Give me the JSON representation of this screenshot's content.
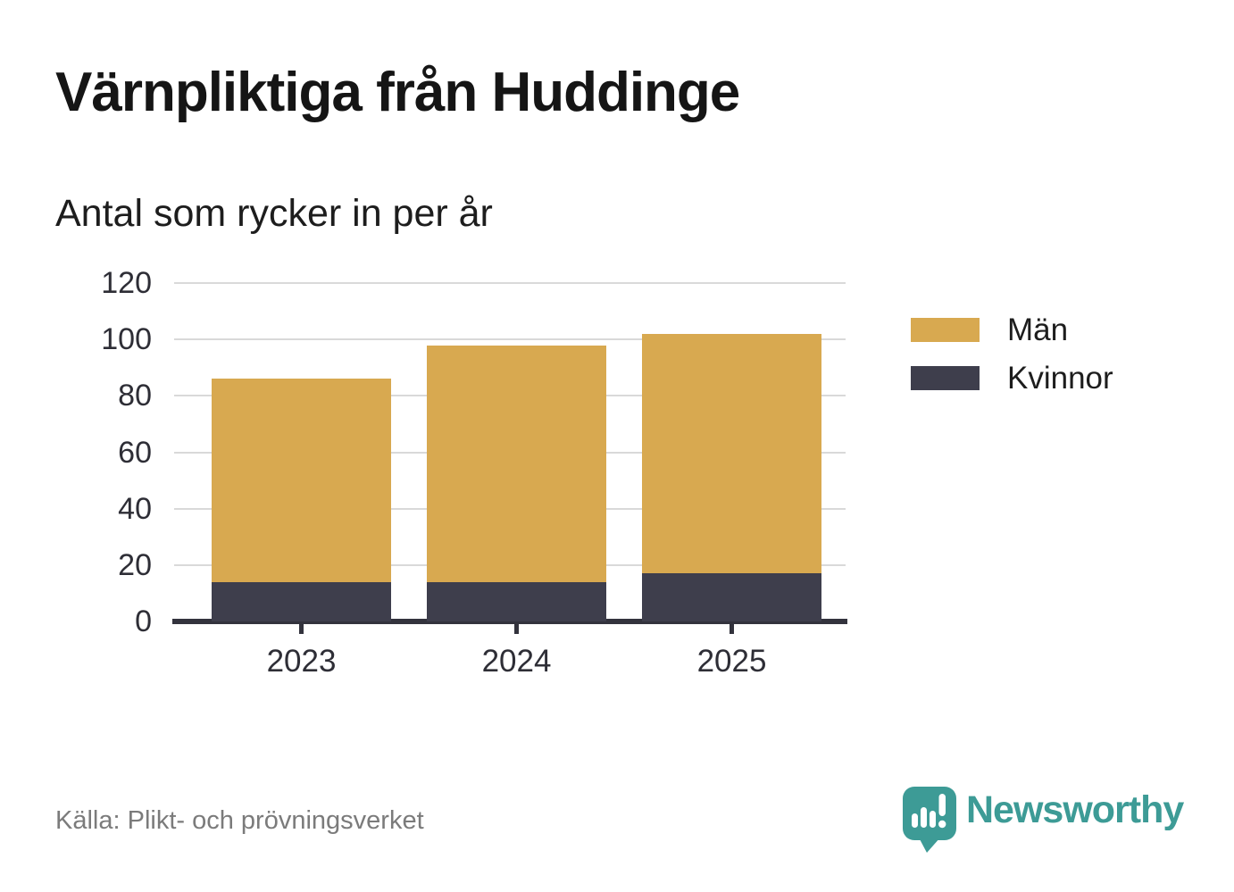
{
  "header": {
    "title": "Värnpliktiga från Huddinge",
    "subtitle": "Antal som rycker in per år"
  },
  "chart_data": {
    "type": "bar",
    "stacked": true,
    "title": "Värnpliktiga från Huddinge",
    "subtitle": "Antal som rycker in per år",
    "categories": [
      "2023",
      "2024",
      "2025"
    ],
    "series": [
      {
        "name": "Kvinnor",
        "color": "#3e3e4c",
        "values": [
          14,
          14,
          17
        ]
      },
      {
        "name": "Män",
        "color": "#d8a950",
        "values": [
          72,
          84,
          85
        ]
      }
    ],
    "stack_totals": [
      86,
      98,
      102
    ],
    "xlabel": "",
    "ylabel": "",
    "ylim": [
      0,
      120
    ],
    "yticks": [
      0,
      20,
      40,
      60,
      80,
      100,
      120
    ],
    "grid": "horizontal",
    "legend_position": "right"
  },
  "legend": {
    "items": [
      {
        "label": "Män",
        "color": "#d8a950"
      },
      {
        "label": "Kvinnor",
        "color": "#3e3e4c"
      }
    ]
  },
  "footer": {
    "source": "Källa: Plikt- och prövningsverket",
    "brand": "Newsworthy"
  },
  "colors": {
    "men": "#d8a950",
    "women": "#3e3e4c",
    "axis": "#33333d",
    "gridline": "#d9d9d9",
    "tick_text": "#2e2e36",
    "source_text": "#7b7b7b",
    "brand_teal": "#3d9b96"
  }
}
